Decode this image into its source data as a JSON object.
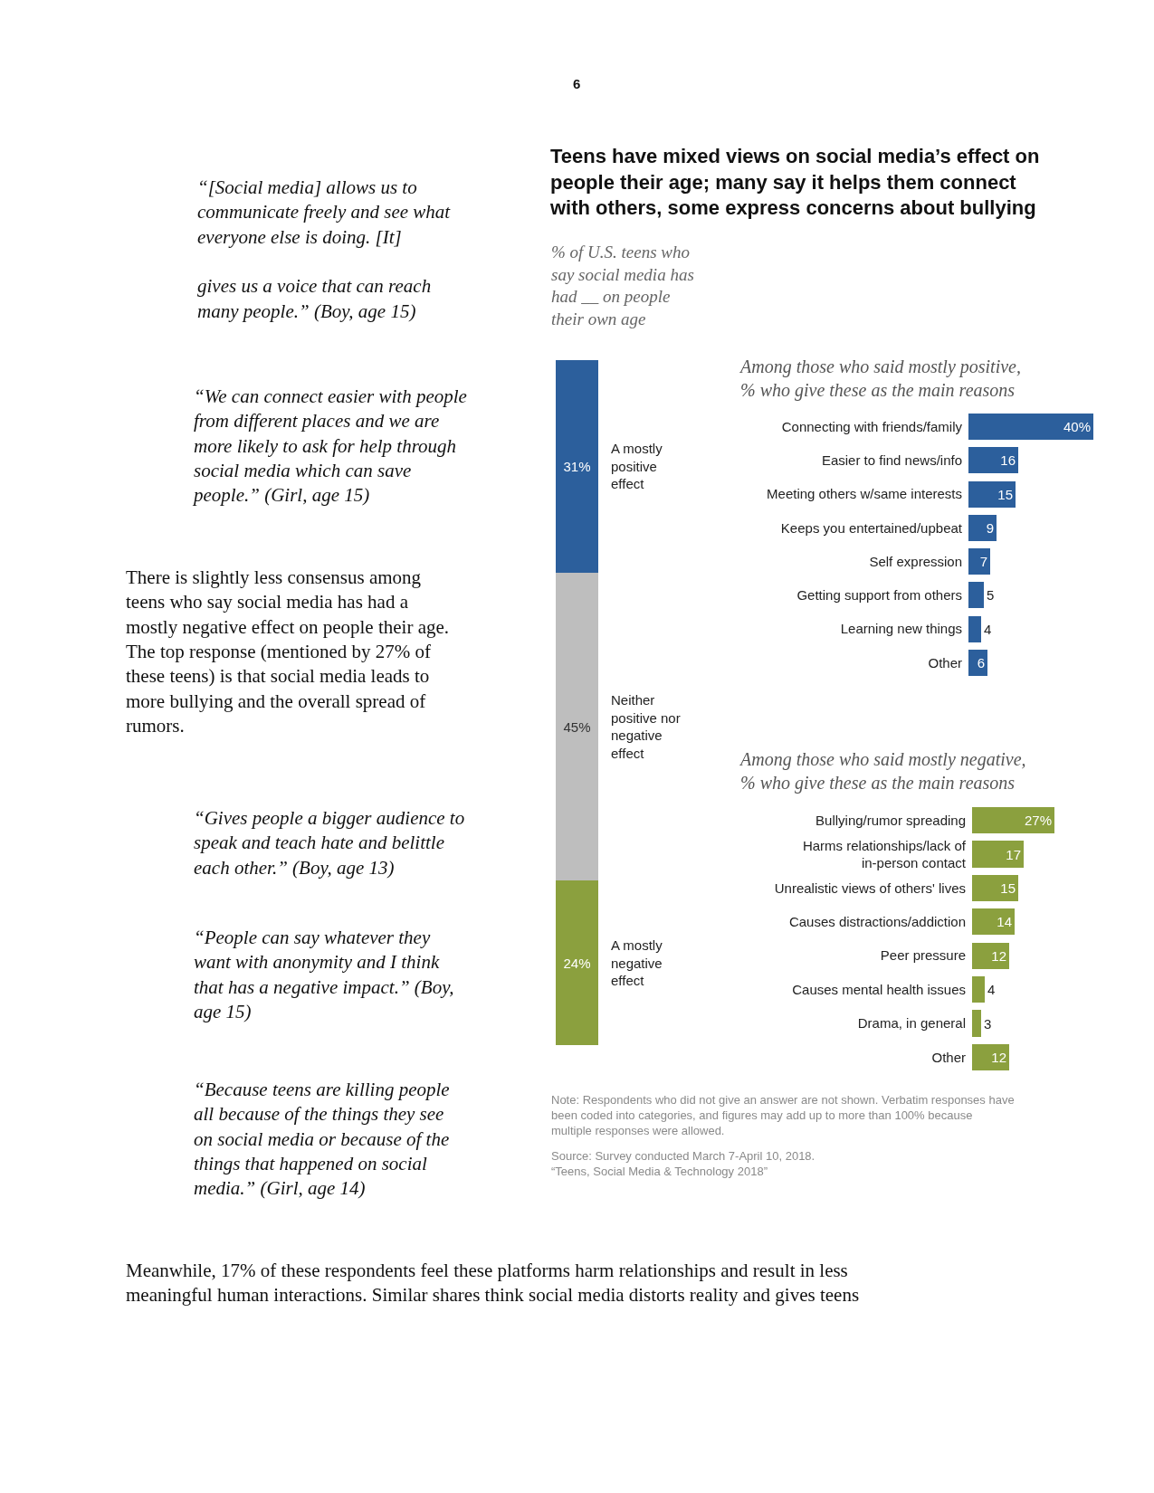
{
  "chart_data": [
    {
      "type": "bar",
      "stacked": true,
      "categories": [
        null
      ],
      "title": "Teens have mixed views on social media’s effect on\npeople their age; many say it helps them connect\nwith others, some express concerns about bullying",
      "subtitle": "% of U.S. teens who\nsay social media has\nhad __ on people\ntheir own age",
      "tick_labels": false,
      "legend": false,
      "series": [
        {
          "name": "A mostly\nnegative\neffect",
          "color": "#8ba03e",
          "values": [
            24
          ],
          "value_labels": [
            "24%"
          ]
        },
        {
          "name": "Neither\npositive nor\nnegative\neffect",
          "color": "#bebebe",
          "values": [
            45
          ],
          "value_labels": [
            "45%"
          ]
        },
        {
          "name": "A mostly\npositive\neffect",
          "color": "#2c5f9c",
          "values": [
            31
          ],
          "value_labels": [
            "31%"
          ]
        }
      ],
      "annotations": [
        "6",
        "Note: Respondents who did not give an answer are not shown. Verbatim responses have\nbeen coded into categories, and figures may add up to more than 100% because\nmultiple responses were allowed.",
        "Source: Survey conducted March 7-April 10, 2018.\n“Teens, Social Media & Technology 2018”",
        "“[Social media] allows us to\ncommunicate freely and see what\neveryone else is doing. [It]\n\ngives us a voice that can reach\nmany people.” (Boy, age 15)",
        "“We can connect easier with people\nfrom different places and we are\nmore likely to ask for help through\nsocial media which can save\npeople.” (Girl, age 15)",
        "There is slightly less consensus among\nteens who say social media has had a\nmostly negative effect on people their age.\nThe top response (mentioned by 27% of\nthese teens) is that social media leads to\nmore bullying and the overall spread of\nrumors.",
        "“Gives people a bigger audience to\nspeak and teach hate and belittle\neach other.” (Boy, age 13)",
        "“People can say whatever they\nwant with anonymity and I think\nthat has a negative impact.” (Boy,\nage 15)",
        "“Because teens are killing people\nall because of the things they see\non social media or because of the\nthings that happened on social\nmedia.” (Girl, age 14)",
        "Meanwhile, 17% of these respondents feel these platforms harm relationships and result in less\nmeaningful human interactions. Similar shares think social media distorts reality and gives teens"
      ]
    },
    {
      "type": "bar",
      "orientation": "horizontal",
      "title": "Among those who said mostly positive,\n% who give these as the main reasons",
      "tick_labels": "y",
      "legend": false,
      "color": "#2c5f9c",
      "categories": [
        "Connecting with friends/family",
        "Easier to find news/info",
        "Meeting others w/same interests",
        "Keeps you entertained/upbeat",
        "Self expression",
        "Getting support from others",
        "Learning new things",
        "Other"
      ],
      "values": [
        40,
        16,
        15,
        9,
        7,
        5,
        4,
        6
      ],
      "value_labels": [
        "40%",
        "16",
        "15",
        "9",
        "7",
        "5",
        "4",
        "6"
      ]
    },
    {
      "type": "bar",
      "orientation": "horizontal",
      "title": "Among those who said mostly negative,\n% who give these as the main reasons",
      "tick_labels": "y",
      "legend": false,
      "color": "#8ba03e",
      "categories": [
        "Bullying/rumor spreading",
        "Harms relationships/lack of\nin-person contact",
        "Unrealistic views of others' lives",
        "Causes distractions/addiction",
        "Peer pressure",
        "Causes mental health issues",
        "Drama, in general",
        "Other"
      ],
      "values": [
        27,
        17,
        15,
        14,
        12,
        4,
        3,
        12
      ],
      "value_labels": [
        "27%",
        "17",
        "15",
        "14",
        "12",
        "4",
        "3",
        "12"
      ]
    }
  ]
}
